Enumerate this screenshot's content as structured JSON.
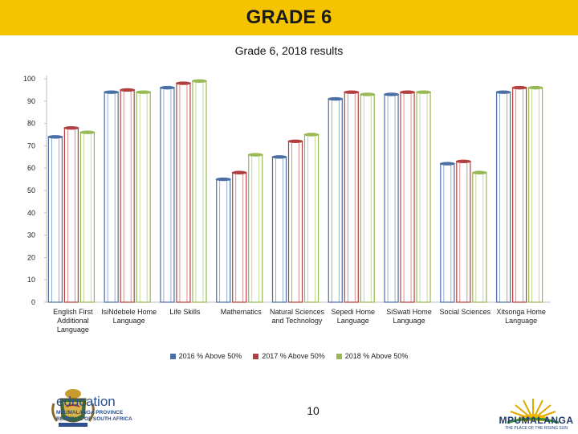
{
  "slide": {
    "heading": "GRADE 6",
    "page_number": "10"
  },
  "branding": {
    "left_logo_text": "education",
    "left_logo_sub1": "MPUMALANGA PROVINCE",
    "left_logo_sub2": "REPUBLIC OF SOUTH AFRICA",
    "right_logo_text": "MPUMALANGA",
    "right_logo_tagline": "THE PLACE OF THE RISING SUN"
  },
  "colors": {
    "header": "#f5c400",
    "series_2016": "#4a6fa5",
    "series_2017": "#b34040",
    "series_2018": "#98b954"
  },
  "chart_data": {
    "type": "bar",
    "title": "Grade 6, 2018 results",
    "xlabel": "",
    "ylabel": "",
    "ylim": [
      0,
      100
    ],
    "yticks": [
      0,
      10,
      20,
      30,
      40,
      50,
      60,
      70,
      80,
      90,
      100
    ],
    "grid": false,
    "legend": "bottom",
    "categories": [
      [
        "English First",
        "Additional",
        "Language"
      ],
      [
        "IsiNdebele Home",
        "Language"
      ],
      [
        "Life Skills"
      ],
      [
        "Mathematics"
      ],
      [
        "Natural Sciences",
        "and Technology"
      ],
      [
        "Sepedi Home",
        "Language"
      ],
      [
        "SiSwati Home",
        "Language"
      ],
      [
        "Social Sciences"
      ],
      [
        "Xitsonga Home",
        "Language"
      ]
    ],
    "series": [
      {
        "name": "2016 % Above 50%",
        "values": [
          74,
          94,
          96,
          55,
          65,
          91,
          93,
          62,
          94
        ]
      },
      {
        "name": "2017  % Above 50%",
        "values": [
          78,
          95,
          98,
          58,
          72,
          94,
          94,
          63,
          96
        ]
      },
      {
        "name": "2018 % Above 50%",
        "values": [
          76,
          94,
          99,
          66,
          75,
          93,
          94,
          58,
          96
        ]
      }
    ]
  }
}
